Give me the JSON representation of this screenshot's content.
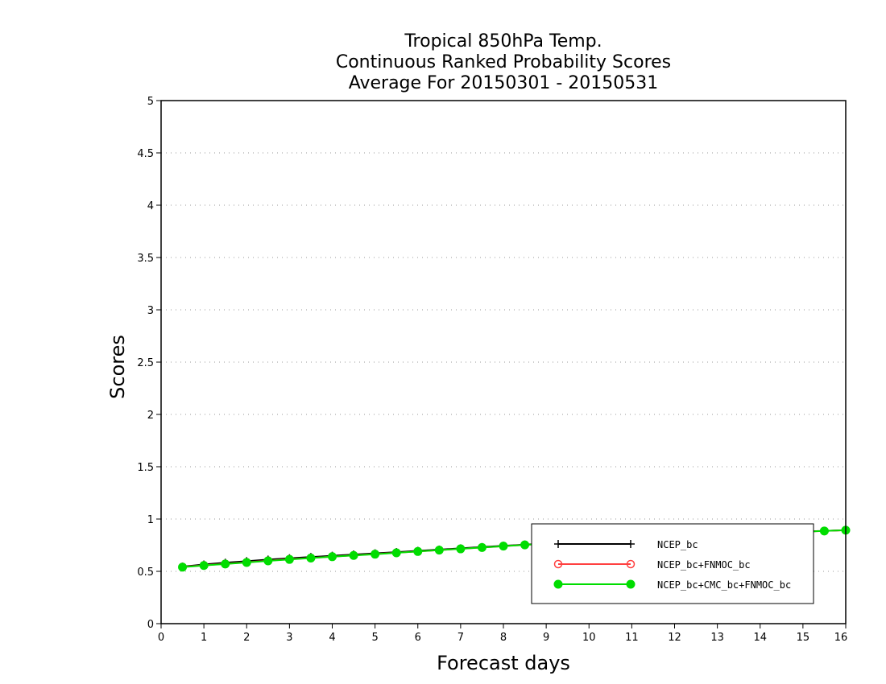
{
  "chart_data": {
    "type": "line",
    "title_lines": [
      "Tropical 850hPa Temp.",
      "Continuous Ranked Probability Scores",
      "Average For 20150301 - 20150531"
    ],
    "xlabel": "Forecast days",
    "ylabel": "Scores",
    "xlim": [
      0,
      16
    ],
    "ylim": [
      0,
      5
    ],
    "x_ticks": [
      0,
      1,
      2,
      3,
      4,
      5,
      6,
      7,
      8,
      9,
      10,
      11,
      12,
      13,
      14,
      15,
      16
    ],
    "x_tick_labels": [
      "0",
      "1",
      "2",
      "3",
      "4",
      "5",
      "6",
      "7",
      "8",
      "9",
      "10",
      "11",
      "12",
      "13",
      "14",
      "15",
      "16"
    ],
    "y_ticks": [
      0,
      0.5,
      1,
      1.5,
      2,
      2.5,
      3,
      3.5,
      4,
      4.5,
      5
    ],
    "y_tick_labels": [
      "0",
      "0.5",
      "1",
      "1.5",
      "2",
      "2.5",
      "3",
      "3.5",
      "4",
      "4.5",
      "5"
    ],
    "grid": "horizontal-dotted",
    "legend_position": "bottom-right",
    "x": [
      0.5,
      1,
      1.5,
      2,
      2.5,
      3,
      3.5,
      4,
      4.5,
      5,
      5.5,
      6,
      6.5,
      7,
      7.5,
      8,
      8.5,
      9,
      9.5,
      10,
      10.5,
      11,
      11.5,
      12,
      12.5,
      13,
      13.5,
      14,
      14.5,
      15,
      15.5,
      16
    ],
    "series": [
      {
        "name": "NCEP_bc",
        "color": "#000000",
        "marker": "plus",
        "values": [
          0.545,
          0.565,
          0.582,
          0.597,
          0.612,
          0.625,
          0.637,
          0.649,
          0.661,
          0.672,
          0.684,
          0.696,
          0.708,
          0.72,
          0.732,
          0.744,
          0.756,
          0.768,
          0.78,
          0.79,
          0.8,
          0.81,
          0.82,
          0.83,
          0.84,
          0.848,
          0.856,
          0.864,
          0.872,
          0.88,
          0.887,
          0.894
        ]
      },
      {
        "name": "NCEP_bc+FNMOC_bc",
        "color": "#ff4040",
        "marker": "open-circle",
        "values": [
          0.542,
          0.558,
          0.572,
          0.587,
          0.602,
          0.616,
          0.628,
          0.641,
          0.653,
          0.665,
          0.678,
          0.69,
          0.703,
          0.715,
          0.728,
          0.741,
          0.753,
          0.765,
          0.777,
          0.788,
          0.798,
          0.808,
          0.818,
          0.828,
          0.838,
          0.847,
          0.855,
          0.863,
          0.871,
          0.879,
          0.886,
          0.893
        ]
      },
      {
        "name": "NCEP_bc+CMC_bc+FNMOC_bc",
        "color": "#00dd00",
        "marker": "filled-circle",
        "values": [
          0.54,
          0.556,
          0.57,
          0.585,
          0.6,
          0.614,
          0.627,
          0.64,
          0.652,
          0.664,
          0.677,
          0.69,
          0.703,
          0.715,
          0.728,
          0.741,
          0.753,
          0.765,
          0.777,
          0.788,
          0.798,
          0.808,
          0.818,
          0.828,
          0.838,
          0.847,
          0.855,
          0.863,
          0.871,
          0.879,
          0.886,
          0.893
        ]
      }
    ]
  }
}
